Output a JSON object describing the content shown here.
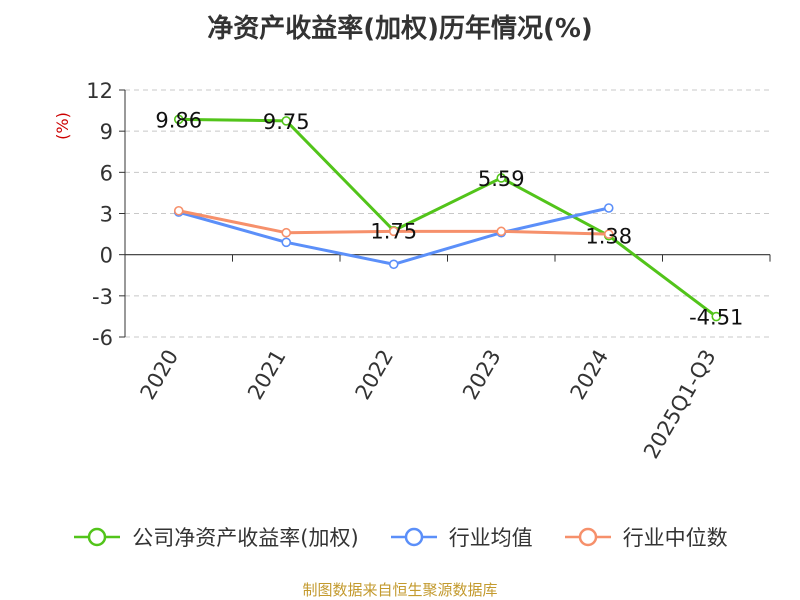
{
  "colors": {
    "company": "#52c41a",
    "avg": "#5b8ff9",
    "median": "#f6906b",
    "unit": "#cc0000",
    "source": "#c39a2e"
  },
  "chart_data": {
    "type": "line",
    "title": "净资产收益率(加权)历年情况(%)",
    "ylabel": "(%)",
    "categories": [
      "2020",
      "2021",
      "2022",
      "2023",
      "2024",
      "2025Q1-Q3"
    ],
    "yticks": [
      "12",
      "9",
      "6",
      "3",
      "0",
      "-3",
      "-6"
    ],
    "ylim": [
      -6,
      12
    ],
    "grid": true,
    "legend_position": "bottom",
    "series": [
      {
        "name": "公司净资产收益率(加权)",
        "color": "#52c41a",
        "values": [
          9.86,
          9.75,
          1.75,
          5.59,
          1.38,
          -4.51
        ],
        "labels": [
          "9.86",
          "9.75",
          "1.75",
          "5.59",
          "1.38",
          "-4.51"
        ]
      },
      {
        "name": "行业均值",
        "color": "#5b8ff9",
        "values": [
          3.1,
          0.9,
          -0.7,
          1.6,
          3.4,
          null
        ]
      },
      {
        "name": "行业中位数",
        "color": "#f6906b",
        "values": [
          3.2,
          1.6,
          1.7,
          1.7,
          1.5,
          null
        ]
      }
    ]
  },
  "source": "制图数据来自恒生聚源数据库"
}
